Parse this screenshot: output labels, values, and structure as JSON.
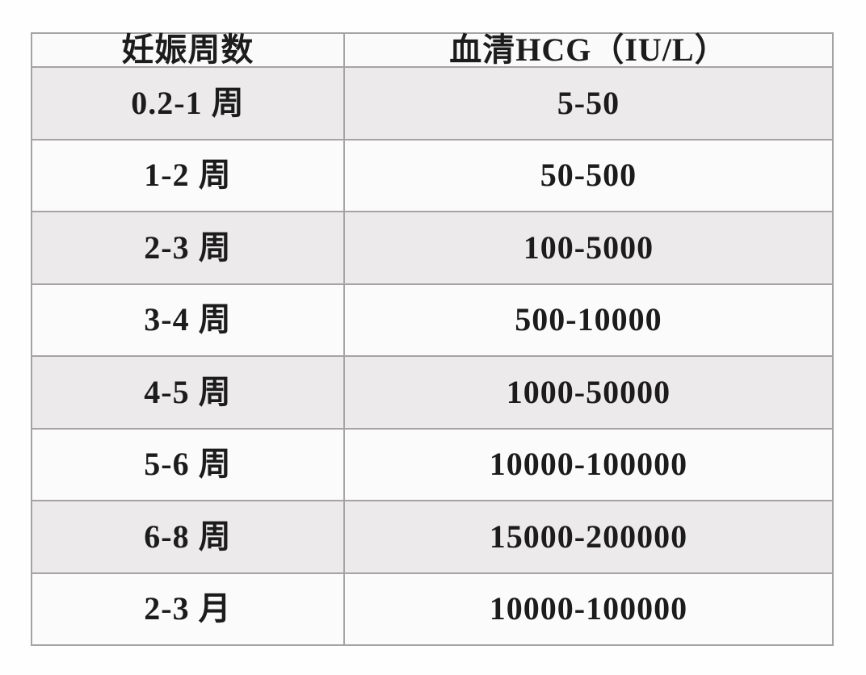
{
  "chart_data": {
    "type": "table",
    "title": "",
    "columns": [
      "妊娠周数",
      "血清HCG（IU/L）"
    ],
    "rows": [
      [
        "0.2-1 周",
        "5-50"
      ],
      [
        "1-2 周",
        "50-500"
      ],
      [
        "2-3 周",
        "100-5000"
      ],
      [
        "3-4 周",
        "500-10000"
      ],
      [
        "4-5 周",
        "1000-50000"
      ],
      [
        "5-6 周",
        "10000-100000"
      ],
      [
        "6-8 周",
        "15000-200000"
      ],
      [
        "2-3 月",
        "10000-100000"
      ]
    ],
    "layout": {
      "header_position": "top",
      "grid": true,
      "alternating_rows": true
    },
    "colors": {
      "background": "#fefefe",
      "header_fill": "#fbfafb",
      "row_fill_odd": "#eceaeb",
      "row_fill_even": "#fcfbfc",
      "border": "#a5a3a4",
      "text": "#1c1c1c"
    }
  }
}
